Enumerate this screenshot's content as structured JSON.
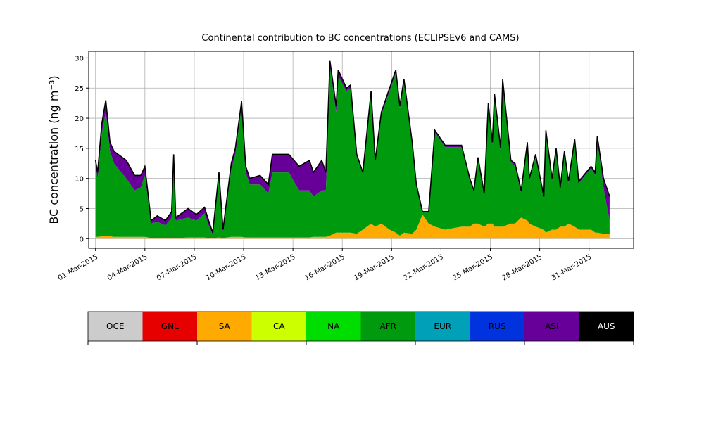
{
  "chart_data": {
    "type": "area",
    "stacked": true,
    "title": "Continental contribution to BC concentrations (ECLIPSEv6 and CAMS)",
    "ylabel": "BC concentration (ng m⁻³)",
    "x": [
      "2015-03-01T00:00",
      "2015-03-01T03:00",
      "2015-03-01T09:00",
      "2015-03-01T15:00",
      "2015-03-01T21:00",
      "2015-03-02T03:00",
      "2015-03-02T21:00",
      "2015-03-03T09:00",
      "2015-03-03T18:00",
      "2015-03-04T00:00",
      "2015-03-04T09:00",
      "2015-03-04T18:00",
      "2015-03-05T06:00",
      "2015-03-05T15:00",
      "2015-03-05T18:00",
      "2015-03-05T21:00",
      "2015-03-06T15:00",
      "2015-03-07T03:00",
      "2015-03-07T15:00",
      "2015-03-07T21:00",
      "2015-03-08T03:00",
      "2015-03-08T12:00",
      "2015-03-08T18:00",
      "2015-03-09T06:00",
      "2015-03-09T12:00",
      "2015-03-09T21:00",
      "2015-03-10T03:00",
      "2015-03-10T09:00",
      "2015-03-11T00:00",
      "2015-03-11T12:00",
      "2015-03-11T18:00",
      "2015-03-12T18:00",
      "2015-03-13T09:00",
      "2015-03-14T00:00",
      "2015-03-14T06:00",
      "2015-03-14T18:00",
      "2015-03-15T00:00",
      "2015-03-15T06:00",
      "2015-03-15T15:00",
      "2015-03-15T18:00",
      "2015-03-16T06:00",
      "2015-03-16T12:00",
      "2015-03-16T21:00",
      "2015-03-17T06:00",
      "2015-03-17T18:00",
      "2015-03-18T00:00",
      "2015-03-18T09:00",
      "2015-03-18T21:00",
      "2015-03-19T06:00",
      "2015-03-19T12:00",
      "2015-03-19T18:00",
      "2015-03-20T06:00",
      "2015-03-20T12:00",
      "2015-03-20T21:00",
      "2015-03-21T06:00",
      "2015-03-21T15:00",
      "2015-03-22T06:00",
      "2015-03-23T06:00",
      "2015-03-23T18:00",
      "2015-03-24T00:00",
      "2015-03-24T06:00",
      "2015-03-24T15:00",
      "2015-03-24T21:00",
      "2015-03-25T03:00",
      "2015-03-25T06:00",
      "2015-03-25T15:00",
      "2015-03-25T18:00",
      "2015-03-26T06:00",
      "2015-03-26T12:00",
      "2015-03-26T21:00",
      "2015-03-27T06:00",
      "2015-03-27T09:00",
      "2015-03-27T18:00",
      "2015-03-28T06:00",
      "2015-03-28T09:00",
      "2015-03-28T18:00",
      "2015-03-29T00:00",
      "2015-03-29T06:00",
      "2015-03-29T12:00",
      "2015-03-29T18:00",
      "2015-03-30T03:00",
      "2015-03-30T09:00",
      "2015-03-31T03:00",
      "2015-03-31T09:00",
      "2015-03-31T12:00",
      "2015-03-31T21:00",
      "2015-04-01T06:00"
    ],
    "series": [
      {
        "name": "OCE",
        "color": "#cccccc",
        "text_color": "#000000",
        "values": [
          0,
          0,
          0,
          0,
          0,
          0,
          0,
          0,
          0,
          0,
          0,
          0,
          0,
          0,
          0,
          0,
          0,
          0,
          0,
          0,
          0,
          0,
          0,
          0,
          0,
          0,
          0,
          0,
          0,
          0,
          0,
          0,
          0,
          0,
          0,
          0,
          0,
          0,
          0,
          0,
          0,
          0,
          0,
          0,
          0,
          0,
          0,
          0,
          0,
          0,
          0,
          0,
          0,
          0,
          0,
          0,
          0,
          0,
          0,
          0,
          0,
          0,
          0,
          0,
          0,
          0,
          0,
          0,
          0,
          0,
          0,
          0,
          0,
          0,
          0,
          0,
          0,
          0,
          0,
          0,
          0,
          0,
          0,
          0,
          0,
          0,
          0
        ]
      },
      {
        "name": "GNL",
        "color": "#e60000",
        "text_color": "#000000",
        "values": [
          0,
          0,
          0,
          0,
          0,
          0,
          0,
          0,
          0,
          0,
          0,
          0,
          0,
          0,
          0,
          0,
          0,
          0,
          0,
          0,
          0,
          0,
          0,
          0,
          0,
          0,
          0,
          0,
          0,
          0,
          0,
          0,
          0,
          0,
          0,
          0,
          0,
          0,
          0,
          0,
          0,
          0,
          0,
          0,
          0,
          0,
          0,
          0,
          0,
          0,
          0,
          0,
          0,
          0,
          0,
          0,
          0,
          0,
          0,
          0,
          0,
          0,
          0,
          0,
          0,
          0,
          0,
          0,
          0,
          0,
          0,
          0,
          0,
          0,
          0,
          0,
          0,
          0,
          0,
          0,
          0,
          0,
          0,
          0,
          0,
          0,
          0
        ]
      },
      {
        "name": "SA",
        "color": "#ffaa00",
        "text_color": "#000000",
        "values": [
          0.3,
          0.3,
          0.4,
          0.4,
          0.4,
          0.3,
          0.3,
          0.3,
          0.3,
          0.3,
          0.1,
          0.1,
          0.1,
          0.1,
          0.1,
          0.1,
          0.2,
          0.2,
          0.2,
          0.1,
          0.1,
          0.2,
          0.1,
          0.3,
          0.3,
          0.3,
          0.2,
          0.2,
          0.2,
          0.2,
          0.2,
          0.2,
          0.2,
          0.2,
          0.3,
          0.3,
          0.3,
          0.5,
          1,
          1,
          1,
          1,
          0.8,
          1.5,
          2.5,
          2,
          2.5,
          1.5,
          1,
          0.5,
          1,
          0.8,
          1.5,
          4,
          2.5,
          2,
          1.5,
          2,
          2,
          2.5,
          2.5,
          2,
          2.5,
          2.5,
          2,
          2,
          2,
          2.5,
          2.5,
          3.5,
          3,
          2.5,
          2,
          1.5,
          1,
          1.5,
          1.5,
          2,
          2,
          2.5,
          2,
          1.5,
          1.5,
          1,
          1,
          0.8,
          0.7
        ]
      },
      {
        "name": "CA",
        "color": "#ccff00",
        "text_color": "#000000",
        "values": [
          0,
          0,
          0,
          0,
          0,
          0,
          0,
          0,
          0,
          0,
          0,
          0,
          0,
          0,
          0,
          0,
          0,
          0,
          0,
          0,
          0,
          0,
          0,
          0,
          0,
          0,
          0,
          0,
          0,
          0,
          0,
          0,
          0,
          0,
          0,
          0,
          0,
          0,
          0,
          0,
          0,
          0,
          0,
          0,
          0,
          0,
          0,
          0,
          0,
          0,
          0,
          0,
          0,
          0,
          0,
          0,
          0,
          0,
          0,
          0,
          0,
          0,
          0,
          0,
          0,
          0,
          0,
          0,
          0,
          0,
          0,
          0,
          0,
          0,
          0,
          0,
          0,
          0,
          0,
          0,
          0,
          0,
          0,
          0,
          0,
          0,
          0
        ]
      },
      {
        "name": "NA",
        "color": "#00dd00",
        "text_color": "#000000",
        "values": [
          0,
          0,
          0,
          0,
          0,
          0,
          0,
          0,
          0,
          0,
          0,
          0,
          0,
          0,
          0,
          0,
          0,
          0,
          0,
          0,
          0,
          0,
          0,
          0,
          0,
          0,
          0,
          0,
          0,
          0,
          0,
          0,
          0,
          0,
          0,
          0,
          0,
          0,
          0,
          0,
          0,
          0,
          0,
          0,
          0,
          0,
          0,
          0,
          0,
          0,
          0,
          0,
          0,
          0,
          0,
          0,
          0,
          0,
          0,
          0,
          0,
          0,
          0,
          0,
          0,
          0,
          0,
          0,
          0,
          0,
          0,
          0,
          0,
          0,
          0,
          0,
          0,
          0,
          0,
          0,
          0,
          0,
          0,
          0,
          0,
          0,
          0
        ]
      },
      {
        "name": "AFR",
        "color": "#009a0e",
        "text_color": "#000000",
        "values": [
          11.7,
          9.7,
          17.1,
          20.6,
          14.1,
          12.2,
          9.7,
          7.7,
          8.2,
          10.2,
          2.4,
          2.7,
          2.1,
          3.4,
          13.4,
          2.9,
          3.3,
          2.8,
          4.0,
          2.1,
          0.6,
          10.3,
          1.1,
          11.2,
          13.7,
          21.7,
          10.8,
          8.8,
          8.8,
          7.3,
          10.8,
          10.8,
          7.8,
          7.8,
          6.7,
          7.7,
          7.7,
          28,
          20,
          26,
          23.5,
          24,
          12.9,
          9.3,
          21.5,
          10.7,
          18,
          23,
          26.5,
          21.2,
          25,
          14.9,
          7.3,
          0.5,
          1.9,
          15.7,
          13.7,
          13.2,
          7.7,
          5.2,
          10.7,
          5.2,
          19.5,
          13.2,
          21.7,
          12.7,
          24.2,
          10.2,
          9.5,
          4,
          12.7,
          7.2,
          11.5,
          5.2,
          16.7,
          8.2,
          13.2,
          6.2,
          12.2,
          6.7,
          14.2,
          7.7,
          10.2,
          9.5,
          15.5,
          7.7,
          2.3
        ]
      },
      {
        "name": "EUR",
        "color": "#00a0b8",
        "text_color": "#000000",
        "values": [
          0,
          0,
          0,
          0,
          0,
          0,
          0,
          0,
          0,
          0,
          0,
          0,
          0,
          0,
          0,
          0,
          0,
          0,
          0,
          0,
          0,
          0,
          0,
          0,
          0,
          0,
          0,
          0,
          0,
          0,
          0,
          0,
          0,
          0,
          0,
          0,
          0,
          0,
          0,
          0,
          0,
          0,
          0,
          0,
          0,
          0,
          0,
          0,
          0,
          0,
          0,
          0,
          0,
          0,
          0,
          0,
          0,
          0,
          0,
          0,
          0,
          0,
          0,
          0,
          0,
          0,
          0,
          0,
          0,
          0,
          0,
          0,
          0,
          0,
          0,
          0,
          0,
          0,
          0,
          0,
          0,
          0,
          0,
          0,
          0,
          0,
          0
        ]
      },
      {
        "name": "RUS",
        "color": "#0033dd",
        "text_color": "#000000",
        "values": [
          0,
          0,
          0,
          0,
          0,
          0,
          0,
          0,
          0,
          0,
          0,
          0,
          0,
          0,
          0,
          0,
          0,
          0,
          0,
          0,
          0,
          0,
          0,
          0,
          0,
          0,
          0,
          0,
          0,
          0,
          0,
          0,
          0,
          0,
          0,
          0,
          0,
          0,
          0,
          0,
          0,
          0,
          0,
          0,
          0,
          0,
          0,
          0,
          0,
          0,
          0,
          0,
          0,
          0,
          0,
          0,
          0,
          0,
          0,
          0,
          0,
          0,
          0,
          0,
          0,
          0,
          0,
          0,
          0,
          0,
          0,
          0,
          0,
          0,
          0,
          0,
          0,
          0,
          0,
          0,
          0,
          0,
          0,
          0,
          0,
          0,
          0
        ]
      },
      {
        "name": "ASI",
        "color": "#660099",
        "text_color": "#000000",
        "values": [
          1,
          1,
          1.5,
          2,
          1.5,
          2,
          3,
          2.5,
          2,
          1.5,
          0.5,
          1,
          0.8,
          1,
          0.5,
          0.5,
          1.5,
          1,
          1,
          0.8,
          0.3,
          0.5,
          0.3,
          1,
          1,
          0.8,
          1,
          1,
          1.5,
          1.5,
          3,
          3,
          4,
          5,
          4,
          5,
          3,
          1,
          1,
          1,
          0.5,
          0.5,
          0.3,
          0.2,
          0.5,
          0.3,
          0.5,
          0.5,
          0.5,
          0.3,
          0.5,
          0.3,
          0.2,
          0,
          0.1,
          0.3,
          0.3,
          0.3,
          0.3,
          0.3,
          0.3,
          0.3,
          0.5,
          0.3,
          0.3,
          0.3,
          0.3,
          0.3,
          0.5,
          0.5,
          0.3,
          0.3,
          0.5,
          0.3,
          0.3,
          0.3,
          0.3,
          0.3,
          0.3,
          0.3,
          0.3,
          0.3,
          0.3,
          0.5,
          0.5,
          1.5,
          4
        ]
      },
      {
        "name": "AUS",
        "color": "#000000",
        "text_color": "#ffffff",
        "values": [
          0,
          0,
          0,
          0,
          0,
          0,
          0,
          0,
          0,
          0,
          0,
          0,
          0,
          0,
          0,
          0,
          0,
          0,
          0,
          0,
          0,
          0,
          0,
          0,
          0,
          0,
          0,
          0,
          0,
          0,
          0,
          0,
          0,
          0,
          0,
          0,
          0,
          0,
          0,
          0,
          0,
          0,
          0,
          0,
          0,
          0,
          0,
          0,
          0,
          0,
          0,
          0,
          0,
          0,
          0,
          0,
          0,
          0,
          0,
          0,
          0,
          0,
          0,
          0,
          0,
          0,
          0,
          0,
          0,
          0,
          0,
          0,
          0,
          0,
          0,
          0,
          0,
          0,
          0,
          0,
          0,
          0,
          0,
          0,
          0,
          0,
          0
        ]
      }
    ],
    "xlim": [
      "2015-02-28T14:00",
      "2015-04-02T17:00"
    ],
    "xticks": [
      {
        "value": "2015-03-01",
        "label": "01-Mar-2015"
      },
      {
        "value": "2015-03-04",
        "label": "04-Mar-2015"
      },
      {
        "value": "2015-03-07",
        "label": "07-Mar-2015"
      },
      {
        "value": "2015-03-10",
        "label": "10-Mar-2015"
      },
      {
        "value": "2015-03-13",
        "label": "13-Mar-2015"
      },
      {
        "value": "2015-03-16",
        "label": "16-Mar-2015"
      },
      {
        "value": "2015-03-19",
        "label": "19-Mar-2015"
      },
      {
        "value": "2015-03-22",
        "label": "22-Mar-2015"
      },
      {
        "value": "2015-03-25",
        "label": "25-Mar-2015"
      },
      {
        "value": "2015-03-28",
        "label": "28-Mar-2015"
      },
      {
        "value": "2015-03-31",
        "label": "31-Mar-2015"
      }
    ],
    "ylim": [
      -1.6,
      31.1
    ],
    "yticks": [
      0,
      5,
      10,
      15,
      20,
      25,
      30
    ],
    "grid": true,
    "outline_color": "#000000",
    "legend": "bottom"
  }
}
